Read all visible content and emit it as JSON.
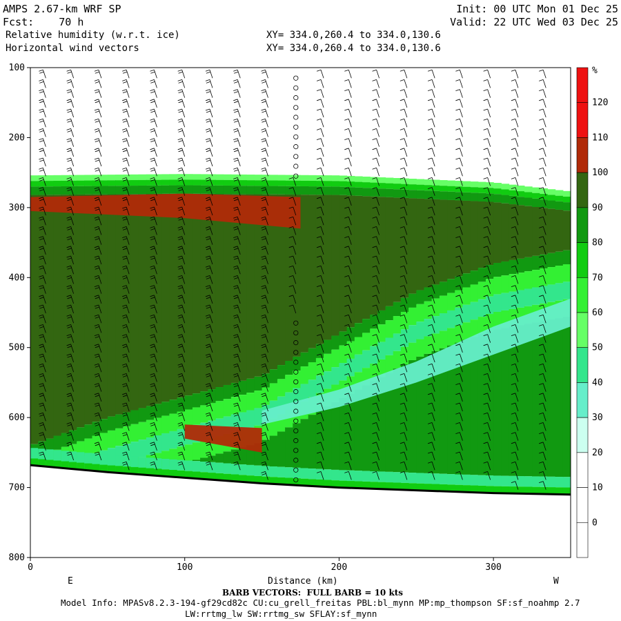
{
  "header": {
    "model_title": "AMPS 2.67-km WRF SP",
    "forecast": "Fcst:    70 h",
    "field_line": "Relative humidity (w.r.t. ice)",
    "vector_line": "Horizontal wind vectors",
    "xy_line1": "XY= 334.0,260.4 to 334.0,130.6",
    "xy_line2": "XY= 334.0,260.4 to 334.0,130.6",
    "init": "Init: 00 UTC Mon 01 Dec 25",
    "valid": "Valid: 22 UTC Wed 03 Dec 25"
  },
  "footer": {
    "barb_note": "BARB VECTORS:  FULL BARB = 10 kts",
    "model_info": "Model Info: MPASv8.2.3-194-gf29cd82c CU:cu_grell_freitas PBL:bl_mynn MP:mp_thompson SF:sf_noahmp 2.7",
    "model_info2": "LW:rrtmg_lw SW:rrtmg_sw SFLAY:sf_mynn"
  },
  "colors": {
    "c0": "#ffffff",
    "c30": "#ccfff0",
    "c40": "#66eeca",
    "c50": "#33e68c",
    "c60": "#66ff66",
    "c70": "#33f033",
    "c80": "#11cc11",
    "c90": "#119911",
    "c100": "#336611",
    "c110": "#b02a08",
    "c120": "#ee1111"
  },
  "chart_data": {
    "type": "heatmap",
    "title": "Relative humidity (w.r.t. ice)",
    "xlabel": "Distance (km)",
    "ylabel": "",
    "x_range": [
      0,
      350
    ],
    "y_range": [
      100,
      800
    ],
    "y_inverted": true,
    "x_ticks": [
      0,
      100,
      200,
      300
    ],
    "y_ticks": [
      100,
      200,
      300,
      400,
      500,
      600,
      700,
      800
    ],
    "x_endpoints": [
      "E",
      "W"
    ],
    "colorbar": {
      "unit": "%",
      "levels": [
        0,
        10,
        20,
        30,
        40,
        50,
        60,
        70,
        80,
        90,
        100,
        110,
        120
      ],
      "colors": [
        "#ffffff",
        "#ffffff",
        "#ffffff",
        "#ccfff0",
        "#66eeca",
        "#33e68c",
        "#66ff66",
        "#33f033",
        "#11cc11",
        "#119911",
        "#336611",
        "#b02a08",
        "#ee1111"
      ]
    },
    "terrain": {
      "x": [
        0,
        50,
        100,
        150,
        200,
        250,
        300,
        350
      ],
      "pressure": [
        668,
        678,
        686,
        694,
        700,
        704,
        708,
        710
      ]
    },
    "rh_bands": [
      {
        "name": "moist-top",
        "rh": 70,
        "top": [
          [
            0,
            255
          ],
          [
            100,
            252
          ],
          [
            200,
            255
          ],
          [
            300,
            258
          ],
          [
            350,
            262
          ]
        ],
        "bottom": [
          [
            0,
            262
          ],
          [
            100,
            260
          ],
          [
            200,
            262
          ],
          [
            300,
            268
          ],
          [
            350,
            275
          ]
        ]
      },
      {
        "name": "main-layer",
        "rh": 100,
        "top": [
          [
            0,
            262
          ],
          [
            100,
            260
          ],
          [
            200,
            262
          ],
          [
            300,
            272
          ],
          [
            350,
            285
          ]
        ],
        "bottom": [
          [
            0,
            640
          ],
          [
            50,
            600
          ],
          [
            100,
            570
          ],
          [
            150,
            540
          ],
          [
            200,
            480
          ],
          [
            250,
            420
          ],
          [
            300,
            380
          ],
          [
            350,
            360
          ]
        ]
      },
      {
        "name": "upper-red",
        "rh": 110,
        "top": [
          [
            0,
            285
          ],
          [
            100,
            280
          ],
          [
            175,
            285
          ]
        ],
        "bottom": [
          [
            0,
            305
          ],
          [
            100,
            315
          ],
          [
            175,
            330
          ]
        ]
      },
      {
        "name": "lower-red",
        "rh": 110,
        "top": [
          [
            100,
            610
          ],
          [
            150,
            615
          ]
        ],
        "bottom": [
          [
            100,
            630
          ],
          [
            150,
            650
          ]
        ]
      },
      {
        "name": "dry-slot",
        "rh": 40,
        "top": [
          [
            150,
            590
          ],
          [
            200,
            560
          ],
          [
            250,
            520
          ],
          [
            300,
            470
          ],
          [
            350,
            430
          ]
        ],
        "bottom": [
          [
            150,
            610
          ],
          [
            200,
            585
          ],
          [
            250,
            550
          ],
          [
            300,
            510
          ],
          [
            350,
            470
          ]
        ]
      }
    ],
    "wind_barbs": {
      "columns_km": [
        10,
        28,
        46,
        64,
        82,
        100,
        118,
        136,
        154,
        172,
        190,
        208,
        226,
        244,
        262,
        280,
        298,
        316,
        334
      ],
      "calm_column_km": 172
    }
  }
}
